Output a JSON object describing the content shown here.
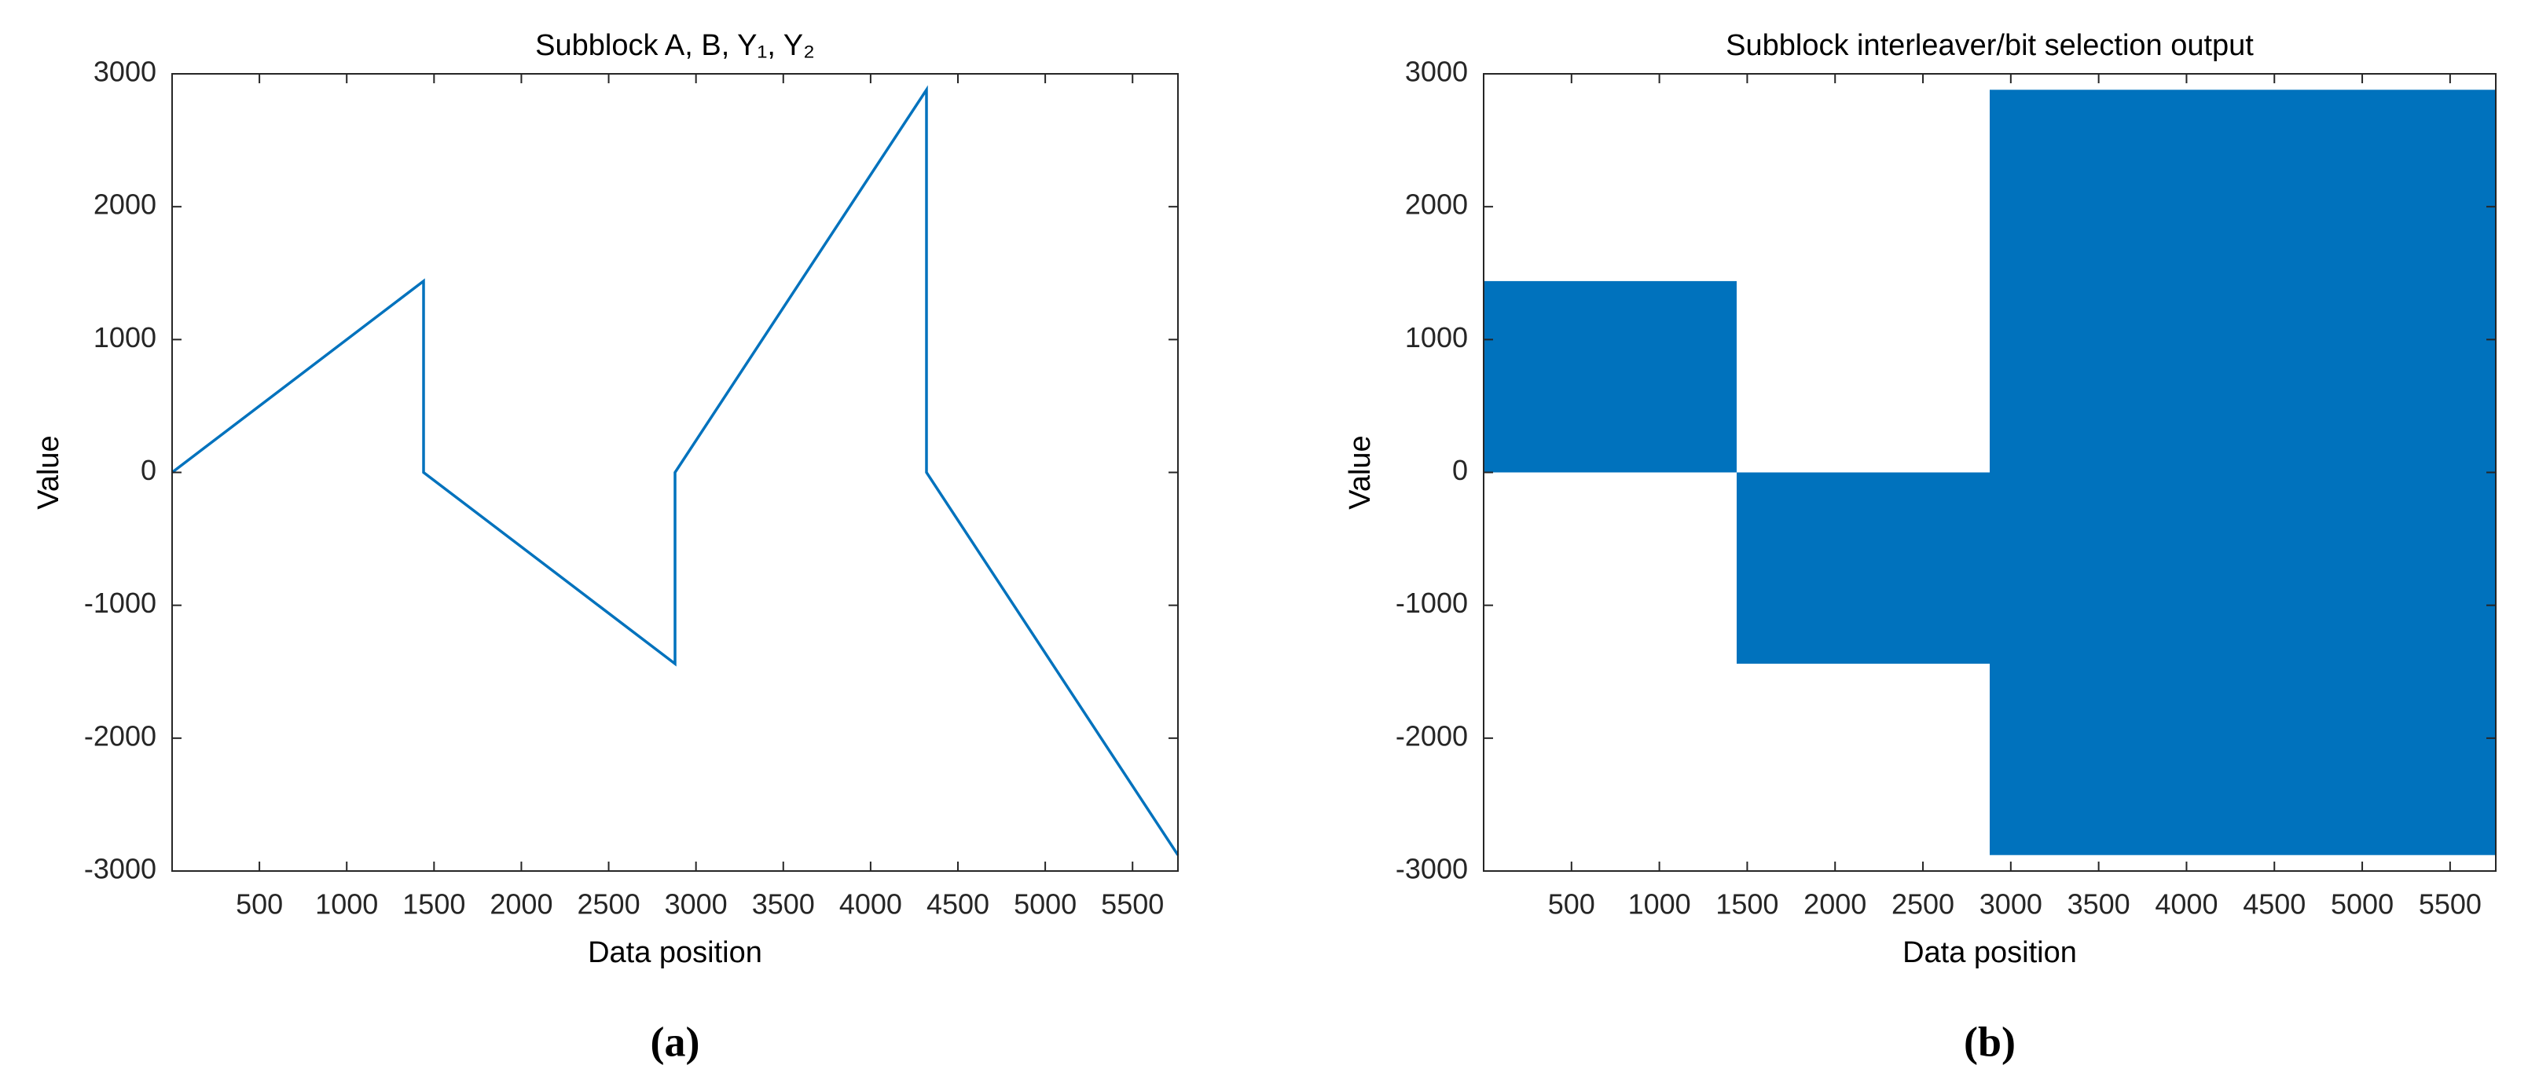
{
  "chart_data": [
    {
      "type": "line",
      "title": "Subblock A, B, Y₁, Y₂",
      "xlabel": "Data position",
      "ylabel": "Value",
      "caption": "(a)",
      "x": [
        0,
        1440,
        1440,
        2880,
        2880,
        4320,
        4320,
        5760
      ],
      "values": [
        0,
        1440,
        0,
        -1440,
        0,
        2880,
        0,
        -2880
      ],
      "color": "#0072bd",
      "xlim": [
        0,
        5760
      ],
      "ylim": [
        -3000,
        3000
      ],
      "xticks": [
        500,
        1000,
        1500,
        2000,
        2500,
        3000,
        3500,
        4000,
        4500,
        5000,
        5500
      ],
      "yticks": [
        -3000,
        -2000,
        -1000,
        0,
        1000,
        2000,
        3000
      ]
    },
    {
      "type": "band",
      "title": "Subblock interleaver/bit selection output",
      "xlabel": "Data position",
      "ylabel": "Value",
      "caption": "(b)",
      "bins": [
        0,
        1440,
        2880,
        5760
      ],
      "low": [
        0,
        -1440,
        -2880
      ],
      "high": [
        1440,
        0,
        2880
      ],
      "color": "#0072bd",
      "xlim": [
        0,
        5760
      ],
      "ylim": [
        -3000,
        3000
      ],
      "xticks": [
        500,
        1000,
        1500,
        2000,
        2500,
        3000,
        3500,
        4000,
        4500,
        5000,
        5500
      ],
      "yticks": [
        -3000,
        -2000,
        -1000,
        0,
        1000,
        2000,
        3000
      ]
    }
  ]
}
